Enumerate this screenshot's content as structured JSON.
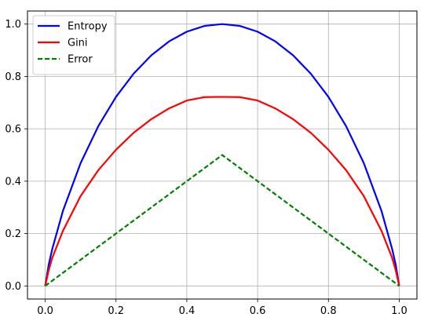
{
  "chart_data": {
    "type": "line",
    "title": "",
    "xlabel": "",
    "ylabel": "",
    "xlim": [
      -0.05,
      1.05
    ],
    "ylim": [
      -0.05,
      1.05
    ],
    "xticks": [
      "0.0",
      "0.2",
      "0.4",
      "0.6",
      "0.8",
      "1.0"
    ],
    "yticks": [
      "0.0",
      "0.2",
      "0.4",
      "0.6",
      "0.8",
      "1.0"
    ],
    "grid": true,
    "legend_position": "upper-left",
    "series": [
      {
        "name": "Entropy",
        "color": "#0000ff",
        "dash": "solid",
        "x": [
          0.0,
          0.01,
          0.02,
          0.05,
          0.1,
          0.15,
          0.2,
          0.25,
          0.3,
          0.35,
          0.4,
          0.45,
          0.5,
          0.55,
          0.6,
          0.65,
          0.7,
          0.75,
          0.8,
          0.85,
          0.9,
          0.95,
          0.98,
          0.99,
          1.0
        ],
        "y": [
          0.0,
          0.081,
          0.141,
          0.286,
          0.469,
          0.61,
          0.722,
          0.811,
          0.881,
          0.934,
          0.971,
          0.993,
          1.0,
          0.993,
          0.971,
          0.934,
          0.881,
          0.811,
          0.722,
          0.61,
          0.469,
          0.286,
          0.141,
          0.081,
          0.0
        ]
      },
      {
        "name": "Gini",
        "color": "#ff0000",
        "dash": "solid",
        "x": [
          0.0,
          0.01,
          0.02,
          0.05,
          0.1,
          0.15,
          0.2,
          0.25,
          0.3,
          0.35,
          0.4,
          0.45,
          0.5,
          0.55,
          0.6,
          0.65,
          0.7,
          0.75,
          0.8,
          0.85,
          0.9,
          0.95,
          0.98,
          0.99,
          1.0
        ],
        "y": [
          0.0,
          0.06,
          0.107,
          0.21,
          0.343,
          0.442,
          0.52,
          0.585,
          0.637,
          0.678,
          0.708,
          0.721,
          0.722,
          0.721,
          0.708,
          0.678,
          0.637,
          0.585,
          0.52,
          0.442,
          0.343,
          0.21,
          0.107,
          0.06,
          0.0
        ]
      },
      {
        "name": "Error",
        "color": "#008000",
        "dash": "dashed",
        "x": [
          0.0,
          0.5,
          1.0
        ],
        "y": [
          0.0,
          0.5,
          0.0
        ]
      }
    ]
  }
}
